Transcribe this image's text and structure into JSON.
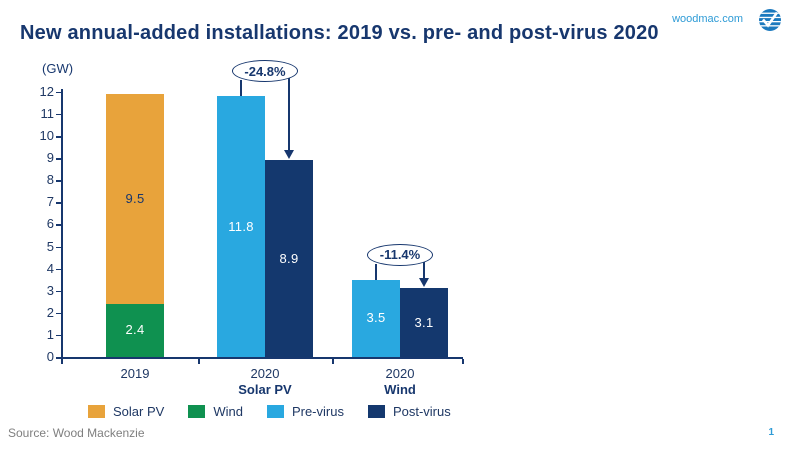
{
  "header": {
    "title": "New annual-added installations: 2019 vs. pre- and post-virus 2020",
    "site_label": "woodmac.com",
    "logo_icon": "woodmac-globe-check-logo"
  },
  "footer": {
    "source": "Source: Wood Mackenzie",
    "page_number": "1"
  },
  "colors": {
    "title_navy": "#17376E",
    "solar_gold": "#E8A33B",
    "wind_green": "#0F9150",
    "pre_virus_blue": "#29A8E0",
    "post_virus_navy": "#14386E",
    "source_gray": "#7F7F7F",
    "link_blue": "#2E9BD6"
  },
  "chart_data": {
    "type": "bar",
    "title": "New annual-added installations: 2019 vs. pre- and post-virus 2020",
    "unit_label": "(GW)",
    "ylim": [
      0,
      12
    ],
    "ytick_step": 1,
    "grid": false,
    "legend_position": "bottom",
    "legend": [
      {
        "label": "Solar PV",
        "color": "#E8A33B"
      },
      {
        "label": "Wind",
        "color": "#0F9150"
      },
      {
        "label": "Pre-virus",
        "color": "#29A8E0"
      },
      {
        "label": "Post-virus",
        "color": "#14386E"
      }
    ],
    "groups": [
      {
        "tick_label": "2019",
        "sub_label": "",
        "annotation": null,
        "bars": [
          {
            "kind": "stacked",
            "segments": [
              {
                "series": "Wind",
                "value": 2.4,
                "color": "#0F9150",
                "label_color": "#FFFFFF"
              },
              {
                "series": "Solar PV",
                "value": 9.5,
                "color": "#E8A33B",
                "label_color": "#17376E"
              }
            ]
          }
        ]
      },
      {
        "tick_label": "2020",
        "sub_label": "Solar PV",
        "annotation": {
          "text": "-24.8%"
        },
        "bars": [
          {
            "kind": "single",
            "series": "Pre-virus",
            "value": 11.8,
            "color": "#29A8E0",
            "label_color": "#FFFFFF"
          },
          {
            "kind": "single",
            "series": "Post-virus",
            "value": 8.9,
            "color": "#14386E",
            "label_color": "#FFFFFF"
          }
        ]
      },
      {
        "tick_label": "2020",
        "sub_label": "Wind",
        "annotation": {
          "text": "-11.4%"
        },
        "bars": [
          {
            "kind": "single",
            "series": "Pre-virus",
            "value": 3.5,
            "color": "#29A8E0",
            "label_color": "#FFFFFF"
          },
          {
            "kind": "single",
            "series": "Post-virus",
            "value": 3.1,
            "color": "#14386E",
            "label_color": "#FFFFFF"
          }
        ]
      }
    ]
  }
}
